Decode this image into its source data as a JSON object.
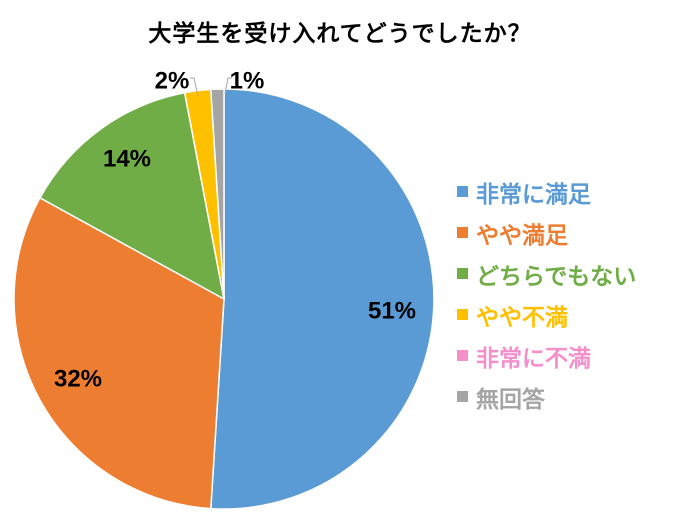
{
  "chart_data": {
    "type": "pie",
    "title": "大学生を受け入れてどうでしたか？",
    "legend_position": "right",
    "slices": [
      {
        "name": "非常に満足",
        "value": 51,
        "label": "51%",
        "color": "#5b9bd5"
      },
      {
        "name": "やや満足",
        "value": 32,
        "label": "32%",
        "color": "#ed7d31"
      },
      {
        "name": "どちらでもない",
        "value": 14,
        "label": "14%",
        "color": "#70ad47"
      },
      {
        "name": "やや不満",
        "value": 2,
        "label": "2%",
        "color": "#ffc000"
      },
      {
        "name": "非常に不満",
        "value": 0,
        "label": "",
        "color": "#f48fca"
      },
      {
        "name": "無回答",
        "value": 1,
        "label": "1%",
        "color": "#a5a5a5"
      }
    ]
  }
}
